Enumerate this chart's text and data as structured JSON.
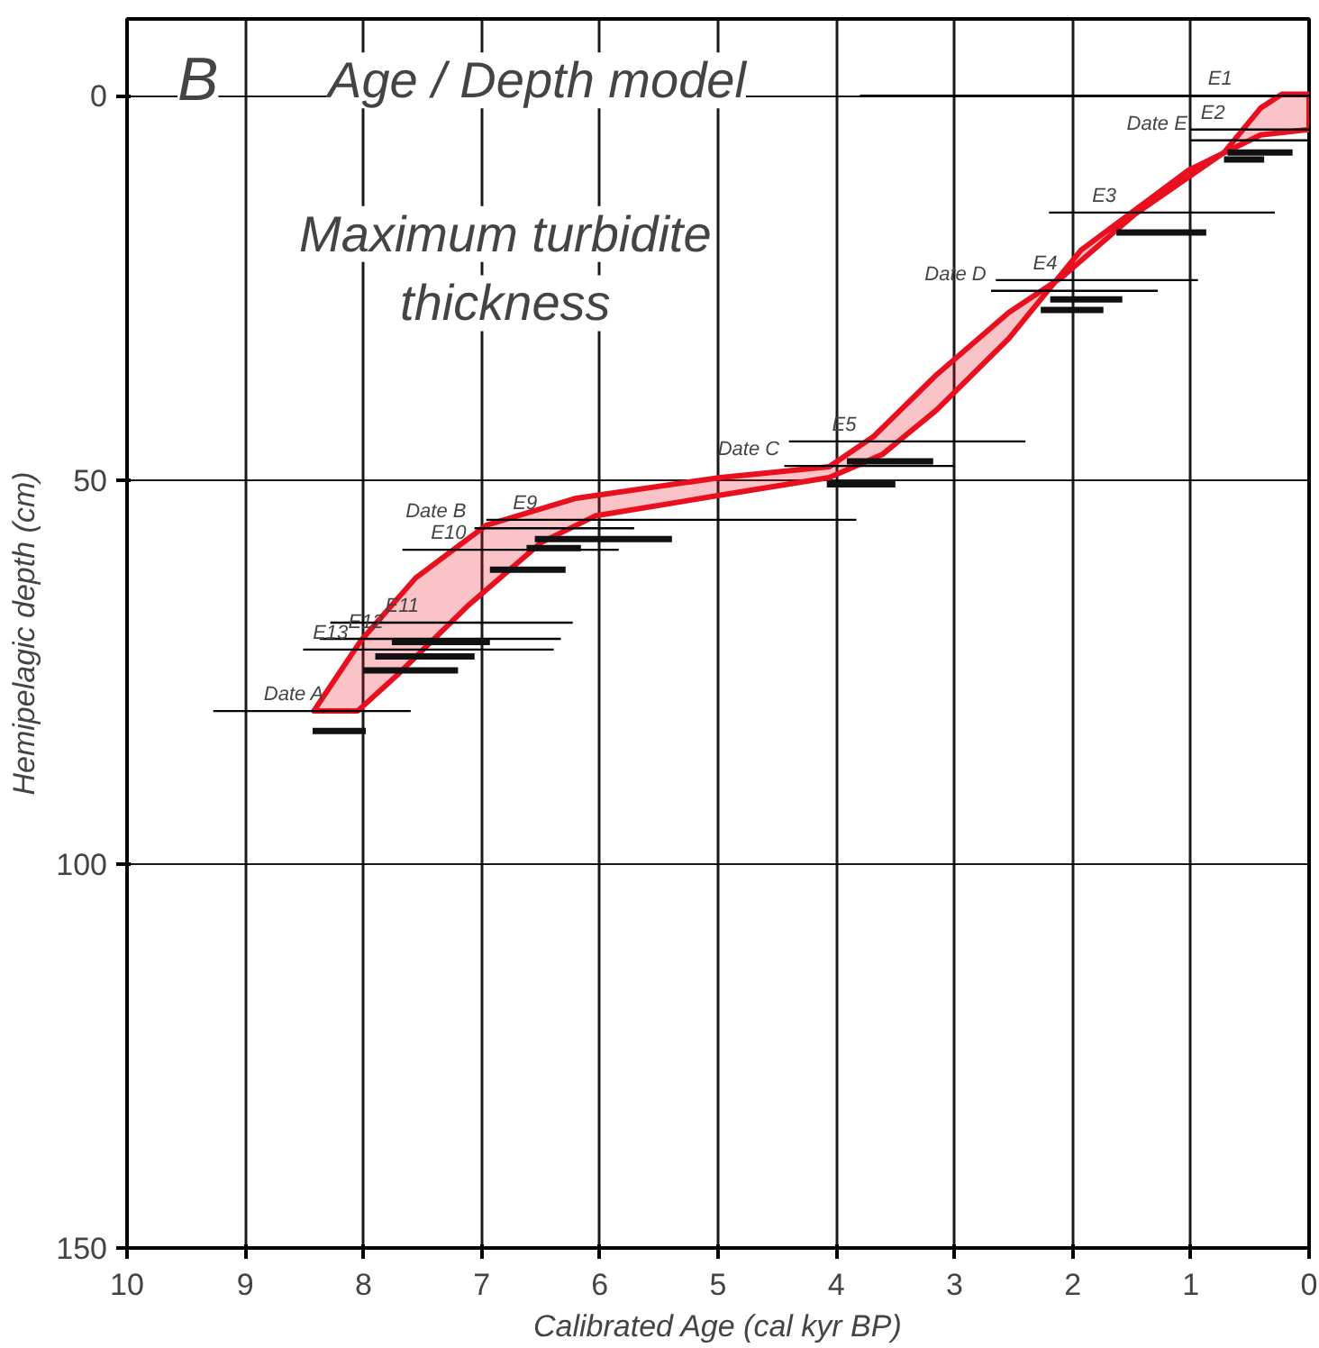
{
  "chart_data": {
    "type": "line",
    "title": "Age / Depth model",
    "xlabel": "Calibrated Age (cal kyr BP)",
    "ylabel": "Hemipelagic depth (cm)",
    "xlim": [
      10,
      0
    ],
    "ylim": [
      150,
      -10
    ],
    "xticks": [
      {
        "value": 10,
        "label": "10"
      },
      9,
      8,
      7,
      6,
      5,
      4,
      3,
      2,
      1,
      0
    ],
    "yticks": [
      0,
      50,
      100,
      150
    ],
    "grid": true,
    "marker": "none",
    "series": [
      {
        "type": "area",
        "color": "#e8101e",
        "x": [
          8.42,
          8.02,
          7.56,
          6.96,
          6.2,
          4.98,
          4.06,
          3.68,
          3.15,
          2.54,
          2.09,
          1.48,
          0.72,
          0.41,
          0.23,
          0,
          0,
          0.41,
          1.02,
          1.93,
          2.54,
          3.15,
          3.61,
          4.06,
          4.98,
          6.04,
          6.5,
          7.11,
          7.72,
          8.05
        ],
        "values": [
          80.1,
          70.9,
          62.8,
          55.9,
          52.4,
          49.7,
          48.3,
          44.3,
          36.3,
          28.2,
          23.6,
          15.5,
          7.4,
          1.6,
          -0.2,
          -0.2,
          4.4,
          5.1,
          9.7,
          20.1,
          31.6,
          40.9,
          46.7,
          49.7,
          52,
          54.7,
          58.2,
          66.3,
          75.5,
          80.1
        ]
      },
      {
        "color": "#000000",
        "x": [
          0,
          3.8,
          null,
          0,
          1.0,
          null,
          0.29,
          2.2,
          null,
          0.94,
          2.65,
          null,
          2.4,
          4.4,
          null,
          3.83,
          6.96,
          null,
          5.84,
          7.67,
          null,
          6.23,
          8.28,
          null,
          6.39,
          8.51
        ],
        "values": [
          0,
          0,
          null,
          4.4,
          4.4,
          null,
          15.2,
          15.2,
          null,
          24.0,
          24.0,
          null,
          45.0,
          45.0,
          null,
          55.2,
          55.2,
          null,
          59.1,
          59.1,
          null,
          68.6,
          68.6,
          null,
          72.1,
          72.1
        ]
      },
      {
        "color": "#000000",
        "x": [
          0,
          1.0,
          null,
          1.28,
          2.69,
          null,
          3.01,
          4.44,
          null,
          5.71,
          7.06,
          null,
          6.33,
          8.37,
          null,
          7.6,
          9.27
        ],
        "values": [
          5.8,
          5.8,
          null,
          25.4,
          25.4,
          null,
          48.2,
          48.2,
          null,
          56.3,
          56.3,
          null,
          70.7,
          70.7,
          null,
          80.1,
          80.1
        ]
      },
      {
        "color": "#111111",
        "x": [
          0.14,
          0.69,
          null,
          0.38,
          0.72,
          null,
          0.87,
          1.63,
          null,
          1.58,
          2.19,
          null,
          1.74,
          2.27,
          null,
          3.18,
          3.91,
          null,
          3.5,
          4.08,
          null,
          5.39,
          6.55,
          null,
          6.16,
          6.62,
          null,
          6.29,
          6.93,
          null,
          6.93,
          7.76,
          null,
          7.06,
          7.9,
          null,
          7.2,
          8.0,
          null,
          7.98,
          8.43
        ],
        "values": [
          7.4,
          7.4,
          null,
          8.3,
          8.3,
          null,
          17.8,
          17.8,
          null,
          26.5,
          26.5,
          null,
          27.9,
          27.9,
          null,
          47.6,
          47.6,
          null,
          50.6,
          50.6,
          null,
          57.7,
          57.7,
          null,
          58.9,
          58.9,
          null,
          61.7,
          61.7,
          null,
          71.1,
          71.1,
          null,
          73.0,
          73.0,
          null,
          74.8,
          74.8,
          null,
          82.7,
          82.7
        ]
      }
    ],
    "annotations": [
      {
        "text": "E1",
        "x": 0.62,
        "y": 0
      },
      {
        "text": "E2",
        "x": 0.68,
        "y": 4.4
      },
      {
        "text": "Date E",
        "x": 1.0,
        "y": 5.8
      },
      {
        "text": "E3",
        "x": 1.6,
        "y": 15.2
      },
      {
        "text": "E4",
        "x": 2.1,
        "y": 24.0
      },
      {
        "text": "Date D",
        "x": 2.7,
        "y": 25.4
      },
      {
        "text": "E5",
        "x": 3.8,
        "y": 45.0
      },
      {
        "text": "Date C",
        "x": 4.45,
        "y": 48.2
      },
      {
        "text": "E9",
        "x": 6.5,
        "y": 55.2
      },
      {
        "text": "Date B",
        "x": 7.1,
        "y": 56.3
      },
      {
        "text": "E10",
        "x": 7.1,
        "y": 59.1
      },
      {
        "text": "E11",
        "x": 7.5,
        "y": 68.6
      },
      {
        "text": "E12",
        "x": 7.8,
        "y": 70.7
      },
      {
        "text": "E13",
        "x": 8.1,
        "y": 72.1
      },
      {
        "text": "Date A",
        "x": 8.3,
        "y": 80.1
      },
      "B",
      "Maximum turbidite thickness"
    ]
  }
}
